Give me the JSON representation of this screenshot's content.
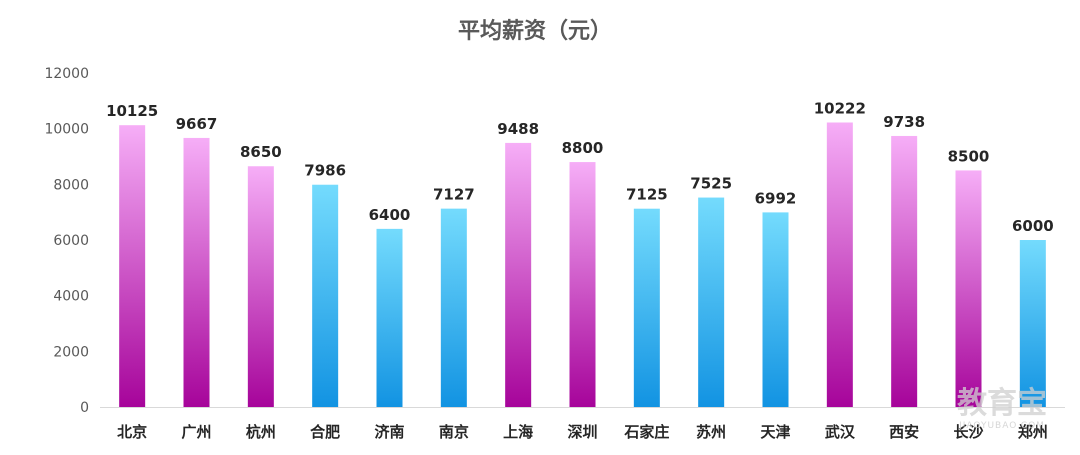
{
  "chart_data": {
    "type": "bar",
    "title": "平均薪资（元）",
    "categories": [
      "北京",
      "广州",
      "杭州",
      "合肥",
      "济南",
      "南京",
      "上海",
      "深圳",
      "石家庄",
      "苏州",
      "天津",
      "武汉",
      "西安",
      "长沙",
      "郑州"
    ],
    "values": [
      10125,
      9667,
      8650,
      7986,
      6400,
      7127,
      9488,
      8800,
      7125,
      7525,
      6992,
      10222,
      9738,
      8500,
      6000
    ],
    "bar_style": [
      "pink",
      "pink",
      "pink",
      "blue",
      "blue",
      "blue",
      "pink",
      "pink",
      "blue",
      "blue",
      "blue",
      "pink",
      "pink",
      "pink",
      "blue"
    ],
    "ylim": [
      0,
      12000
    ],
    "yticks": [
      0,
      2000,
      4000,
      6000,
      8000,
      10000,
      12000
    ],
    "grid": false,
    "xlabel": "",
    "ylabel": ""
  },
  "colors": {
    "pink_top": "#f6aef7",
    "pink_bottom": "#a6049a",
    "blue_top": "#74dbfd",
    "blue_bottom": "#1293e2",
    "axis": "#d9d9d9"
  },
  "watermark": {
    "text": "教育宝",
    "sub": "JIAOYUBAO.COM"
  }
}
